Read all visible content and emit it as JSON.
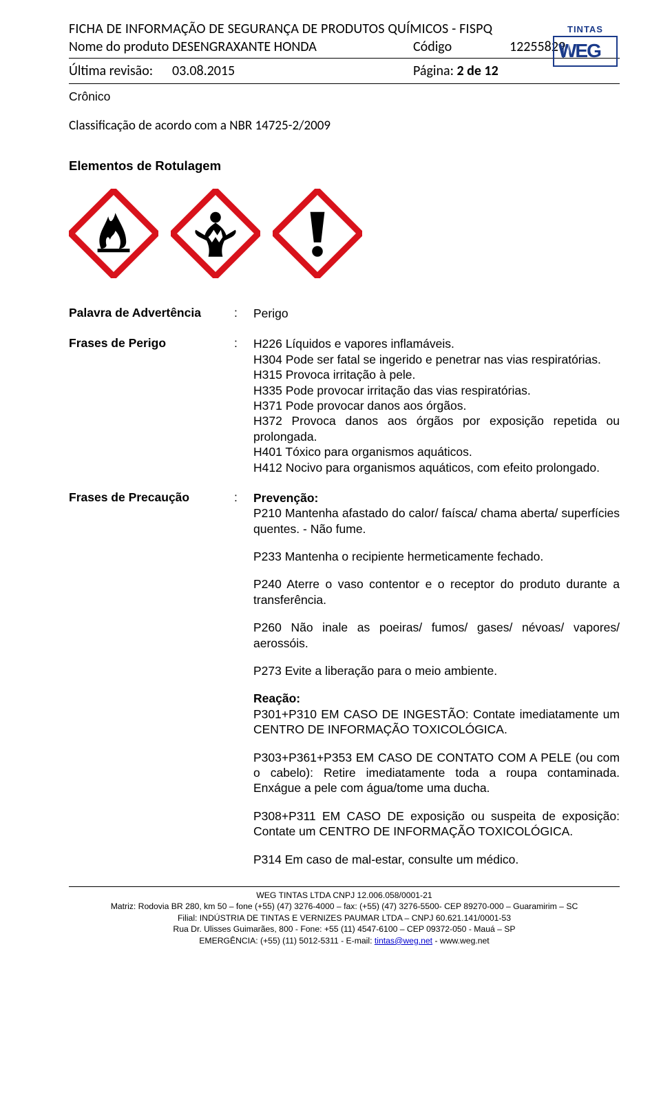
{
  "header": {
    "doc_title": "FICHA DE INFORMAÇÃO DE SEGURANÇA DE PRODUTOS QUÍMICOS - FISPQ",
    "product_label": "Nome do produto",
    "product_name": "DESENGRAXANTE HONDA",
    "code_label": "Código",
    "code_value": "12255829",
    "rev_label": "Última revisão:",
    "rev_date": "03.08.2015",
    "page_label": "Página: ",
    "page_bold": "2 de 12",
    "logo_top": "TINTAS",
    "logo_text": "WEG"
  },
  "sections": {
    "cronico": "Crônico",
    "classif": "Classificação de acordo com a NBR 14725-2/2009",
    "rotulagem": "Elementos de Rotulagem"
  },
  "pictograms": {
    "border_color": "#d8121b",
    "fill_color": "#ffffff",
    "symbol_color": "#000000"
  },
  "signal": {
    "label": "Palavra de Advertência",
    "value": "Perigo"
  },
  "hazard": {
    "label": "Frases de Perigo",
    "lines": [
      "H226 Líquidos e vapores inflamáveis.",
      "H304 Pode ser fatal se ingerido e penetrar nas vias respiratórias.",
      "H315 Provoca irritação à pele.",
      "H335 Pode provocar irritação das vias respiratórias.",
      "H371 Pode provocar danos aos órgãos.",
      "H372 Provoca danos aos órgãos por exposição repetida ou prolongada.",
      "H401 Tóxico para organismos aquáticos.",
      "H412 Nocivo para organismos aquáticos, com efeito prolongado."
    ]
  },
  "precaution": {
    "label": "Frases de Precaução",
    "prevencao_head": "Prevenção:",
    "p210": "P210 Mantenha afastado do calor/ faísca/ chama aberta/ superfícies quentes. - Não fume.",
    "p233": "P233 Mantenha o recipiente hermeticamente fechado.",
    "p240": "P240 Aterre o vaso contentor e o receptor do produto durante a transferência.",
    "p260": "P260 Não inale as poeiras/ fumos/ gases/ névoas/ vapores/ aerossóis.",
    "p273": "P273 Evite a liberação para o meio ambiente.",
    "reacao_head": "Reação:",
    "p301": "P301+P310 EM CASO DE INGESTÃO: Contate imediatamente um CENTRO DE INFORMAÇÃO TOXICOLÓGICA.",
    "p303": "P303+P361+P353 EM CASO DE CONTATO COM A PELE (ou com o cabelo): Retire imediatamente toda a roupa contaminada. Enxágue a pele com água/tome uma ducha.",
    "p308": "P308+P311 EM CASO DE exposição ou suspeita de exposição: Contate um CENTRO DE INFORMAÇÃO TOXICOLÓGICA.",
    "p314": "P314 Em caso de mal-estar, consulte um médico."
  },
  "footer": {
    "l1": "WEG TINTAS LTDA  CNPJ 12.006.058/0001-21",
    "l2": "Matriz: Rodovia BR 280, km 50 – fone (+55) (47) 3276-4000 – fax: (+55) (47) 3276-5500- CEP 89270-000 – Guaramirim – SC",
    "l3": "Filial: INDÚSTRIA DE TINTAS E VERNIZES PAUMAR LTDA – CNPJ 60.621.141/0001-53",
    "l4": "Rua Dr. Ulisses Guimarães, 800 - Fone: +55 (11) 4547-6100 – CEP 09372-050 - Mauá – SP",
    "l5a": "EMERGÊNCIA: (+55) (11) 5012-5311 - E-mail: ",
    "l5_link": "tintas@weg.net",
    "l5b": " - www.weg.net"
  }
}
